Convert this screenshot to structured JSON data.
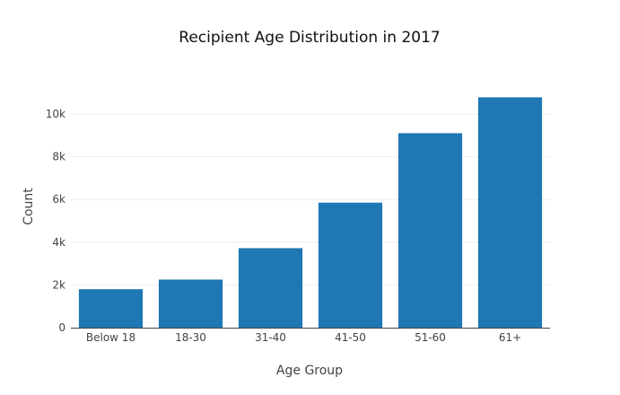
{
  "chart_data": {
    "type": "bar",
    "title": "Recipient Age Distribution in 2017",
    "xlabel": "Age Group",
    "ylabel": "Count",
    "categories": [
      "Below 18",
      "18-30",
      "31-40",
      "41-50",
      "51-60",
      "61+"
    ],
    "values": [
      1800,
      2250,
      3720,
      5850,
      9100,
      10780
    ],
    "ylim": [
      0,
      11300
    ],
    "yticks": [
      0,
      2000,
      4000,
      6000,
      8000,
      10000
    ],
    "ytick_labels": [
      "0",
      "2k",
      "4k",
      "6k",
      "8k",
      "10k"
    ],
    "bar_color": "#1f77b4",
    "grid": true,
    "legend": false
  }
}
